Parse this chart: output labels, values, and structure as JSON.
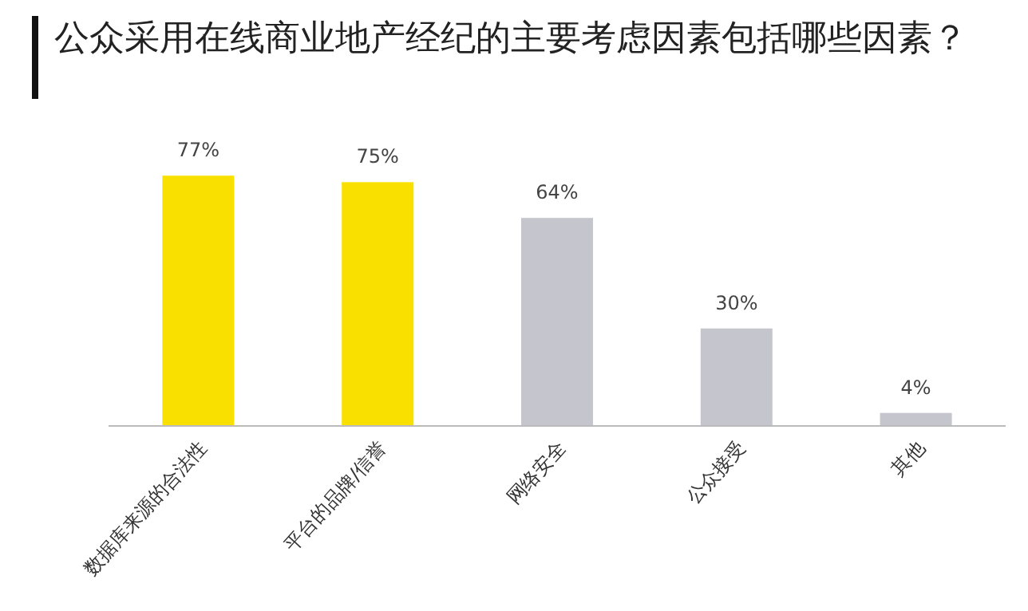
{
  "chart_data": {
    "type": "bar",
    "title": "公众采用在线商业地产经纪的主要考虑因素包括哪些因素？",
    "categories": [
      "数据库来源的合法性",
      "平台的品牌/信誉",
      "网络安全",
      "公众接受",
      "其他"
    ],
    "values": [
      77,
      75,
      64,
      30,
      4
    ],
    "value_labels": [
      "77%",
      "75%",
      "64%",
      "30%",
      "4%"
    ],
    "colors": [
      "#f9e000",
      "#f9e000",
      "#c5c5cd",
      "#c5c5cd",
      "#c5c5cd"
    ],
    "tick_labels": "x",
    "grid": false
  }
}
